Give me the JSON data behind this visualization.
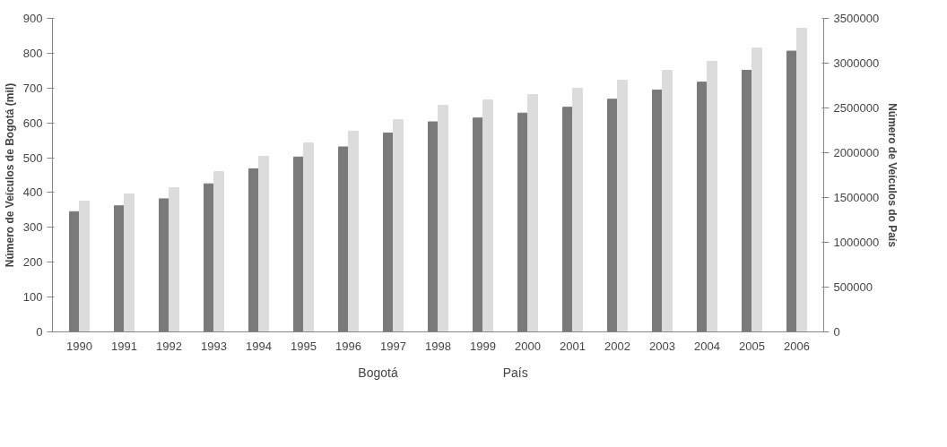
{
  "chart_data": {
    "type": "bar",
    "ylabel": "Número de Veículos de Bogotá (mil)",
    "y2label": "Número de Veículos do País",
    "categories": [
      "1990",
      "1991",
      "1992",
      "1993",
      "1994",
      "1995",
      "1996",
      "1997",
      "1998",
      "1999",
      "2000",
      "2001",
      "2002",
      "2003",
      "2004",
      "2005",
      "2006"
    ],
    "series": [
      {
        "name": "Bogotá",
        "color": "#7a7a7a",
        "values": [
          345,
          362,
          382,
          425,
          468,
          502,
          531,
          571,
          603,
          614,
          628,
          645,
          668,
          694,
          717,
          751,
          806
        ]
      },
      {
        "name": "País",
        "color": "#dcdcdc",
        "axis": "y2",
        "values": [
          1460000,
          1540000,
          1610000,
          1790000,
          1960000,
          2110000,
          2240000,
          2370000,
          2530000,
          2590000,
          2650000,
          2720000,
          2810000,
          2920000,
          3020000,
          3170000,
          3390000
        ]
      }
    ],
    "ylim": [
      0,
      900
    ],
    "yticks": [
      0,
      100,
      200,
      300,
      400,
      500,
      600,
      700,
      800,
      900
    ],
    "y2lim": [
      0,
      3500000
    ],
    "y2ticks": [
      0,
      500000,
      1000000,
      1500000,
      2000000,
      2500000,
      3000000,
      3500000
    ],
    "grid": false,
    "legend": "bottom"
  }
}
